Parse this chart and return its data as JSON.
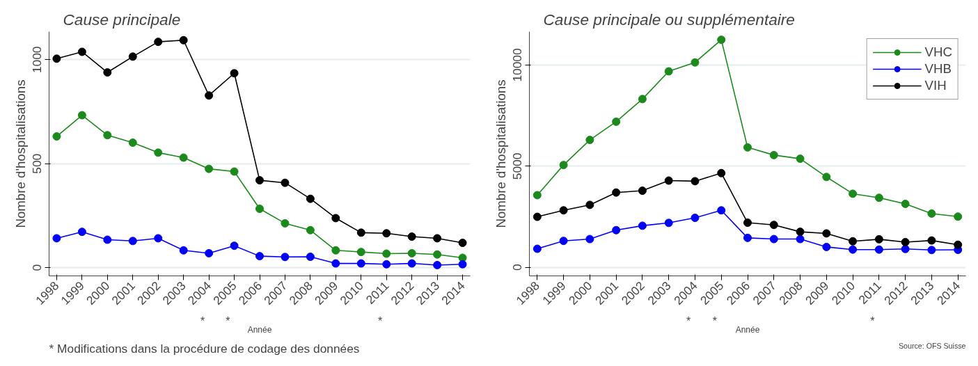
{
  "chart_data": [
    {
      "type": "line",
      "title": "Cause principale",
      "xlabel": "Année",
      "ylabel": "Nombre d'hospitalisations",
      "categories": [
        "1998",
        "1999",
        "2000",
        "2001",
        "2002",
        "2003",
        "2004",
        "2005",
        "2006",
        "2007",
        "2008",
        "2009",
        "2010",
        "2011",
        "2012",
        "2013",
        "2014"
      ],
      "series": [
        {
          "color": "#1a8a1a",
          "values": [
            631,
            733,
            637,
            601,
            553,
            529,
            475,
            462,
            283,
            213,
            180,
            83,
            75,
            67,
            69,
            63,
            47
          ]
        },
        {
          "color": "#0000ff",
          "values": [
            141,
            172,
            134,
            128,
            141,
            83,
            69,
            105,
            55,
            51,
            52,
            20,
            20,
            16,
            20,
            12,
            16
          ]
        },
        {
          "color": "#000000",
          "values": [
            1005,
            1038,
            939,
            1015,
            1086,
            1094,
            828,
            935,
            420,
            408,
            331,
            238,
            168,
            165,
            149,
            141,
            119
          ]
        }
      ],
      "ylim": [
        -40,
        1135
      ],
      "yticks": [
        0,
        500,
        1000
      ],
      "grid": "y",
      "marker": "circle",
      "line_style": "solid",
      "annotations": [
        "*",
        "*",
        "*",
        "* Modifications dans la procédure de codage des données"
      ]
    },
    {
      "type": "line",
      "title": "Cause principale ou supplémentaire",
      "xlabel": "Année",
      "ylabel": "Nombre d'hospitalisations",
      "categories": [
        "1998",
        "1999",
        "2000",
        "2001",
        "2002",
        "2003",
        "2004",
        "2005",
        "2006",
        "2007",
        "2008",
        "2009",
        "2010",
        "2011",
        "2012",
        "2013",
        "2014"
      ],
      "series": [
        {
          "name": "VHC",
          "color": "#1a8a1a",
          "values": [
            3570,
            5060,
            6300,
            7200,
            8320,
            9690,
            10130,
            11250,
            5930,
            5550,
            5370,
            4470,
            3640,
            3440,
            3140,
            2660,
            2510
          ]
        },
        {
          "name": "VHB",
          "color": "#0000ff",
          "values": [
            920,
            1310,
            1400,
            1840,
            2060,
            2200,
            2450,
            2820,
            1460,
            1400,
            1400,
            1010,
            880,
            880,
            910,
            860,
            870
          ]
        },
        {
          "name": "VIH",
          "color": "#000000",
          "values": [
            2500,
            2820,
            3090,
            3700,
            3790,
            4290,
            4260,
            4660,
            2210,
            2100,
            1760,
            1680,
            1290,
            1390,
            1250,
            1330,
            1120
          ]
        }
      ],
      "ylim": [
        -420,
        11650
      ],
      "yticks": [
        0,
        5000,
        10000
      ],
      "grid": "y",
      "legend": "top right",
      "marker": "circle",
      "line_style": "solid",
      "annotations": [
        "*",
        "*",
        "*",
        "Source: OFS Suisse"
      ]
    }
  ]
}
